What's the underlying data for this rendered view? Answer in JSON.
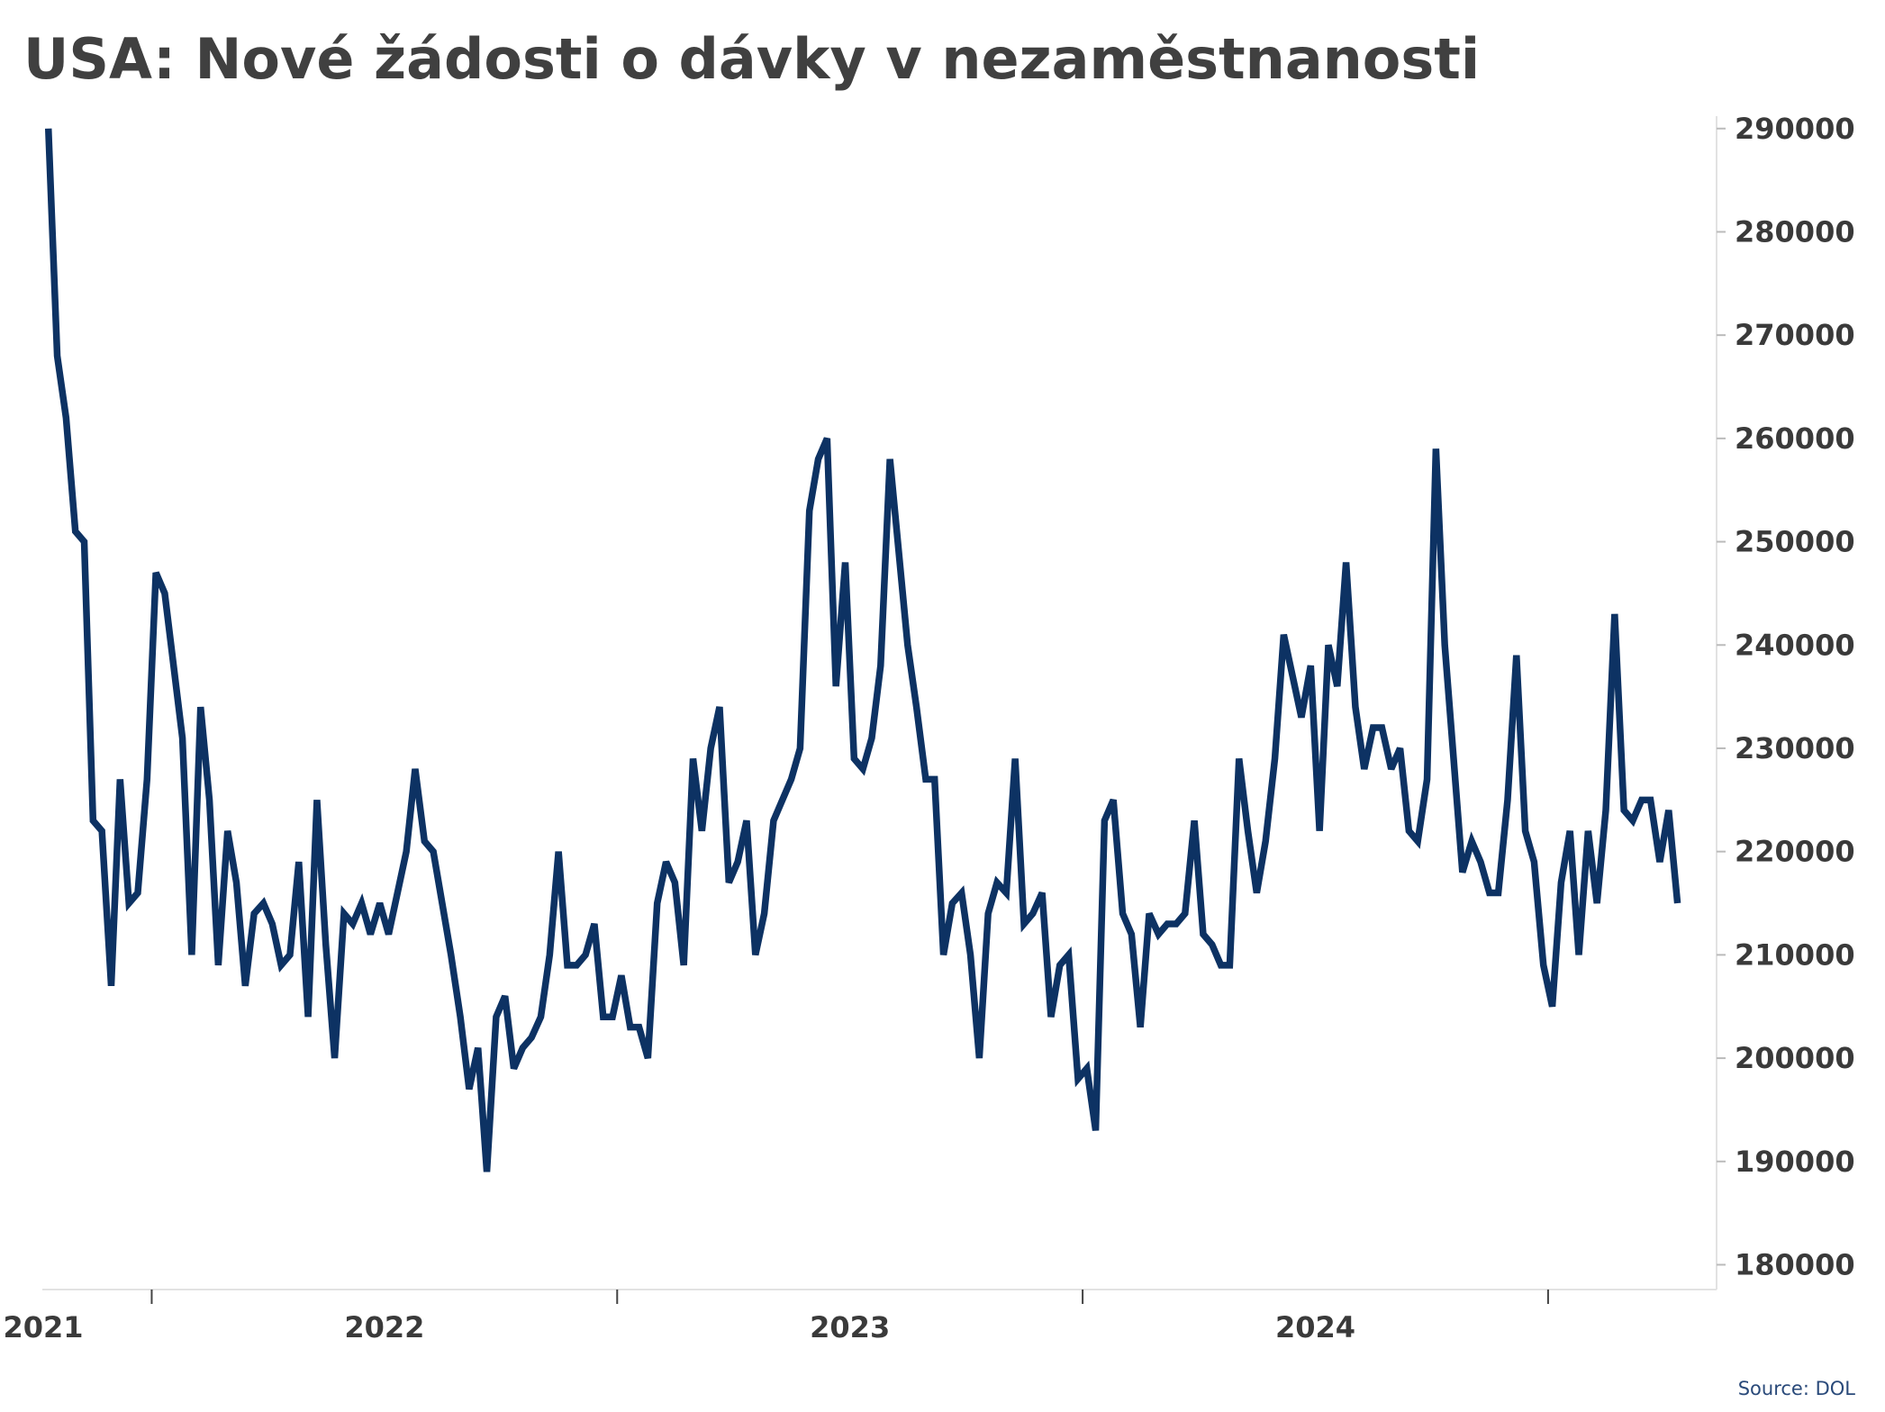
{
  "chart_data": {
    "type": "line",
    "title": "USA: Nové žádosti o dávky v nezaměstnanosti",
    "source": "Source: DOL",
    "color": "#0d3263",
    "x": [
      2021.778,
      2021.797,
      2021.816,
      2021.836,
      2021.855,
      2021.874,
      2021.893,
      2021.913,
      2021.932,
      2021.951,
      2021.97,
      2021.99,
      2022.009,
      2022.028,
      2022.047,
      2022.066,
      2022.086,
      2022.105,
      2022.124,
      2022.143,
      2022.163,
      2022.182,
      2022.201,
      2022.22,
      2022.24,
      2022.259,
      2022.278,
      2022.297,
      2022.316,
      2022.336,
      2022.355,
      2022.374,
      2022.393,
      2022.413,
      2022.432,
      2022.451,
      2022.47,
      2022.49,
      2022.509,
      2022.528,
      2022.547,
      2022.566,
      2022.586,
      2022.605,
      2022.624,
      2022.643,
      2022.663,
      2022.682,
      2022.701,
      2022.72,
      2022.74,
      2022.759,
      2022.778,
      2022.797,
      2022.816,
      2022.836,
      2022.855,
      2022.874,
      2022.893,
      2022.913,
      2022.932,
      2022.951,
      2022.97,
      2022.99,
      2023.009,
      2023.028,
      2023.047,
      2023.066,
      2023.086,
      2023.105,
      2023.124,
      2023.143,
      2023.163,
      2023.182,
      2023.201,
      2023.22,
      2023.24,
      2023.259,
      2023.278,
      2023.297,
      2023.316,
      2023.336,
      2023.355,
      2023.374,
      2023.393,
      2023.413,
      2023.432,
      2023.451,
      2023.47,
      2023.49,
      2023.509,
      2023.528,
      2023.547,
      2023.566,
      2023.586,
      2023.605,
      2023.624,
      2023.643,
      2023.663,
      2023.682,
      2023.701,
      2023.72,
      2023.74,
      2023.759,
      2023.778,
      2023.797,
      2023.816,
      2023.836,
      2023.855,
      2023.874,
      2023.893,
      2023.913,
      2023.932,
      2023.951,
      2023.97,
      2023.99,
      2024.009,
      2024.028,
      2024.047,
      2024.066,
      2024.086,
      2024.105,
      2024.124,
      2024.143,
      2024.163,
      2024.182,
      2024.201,
      2024.22,
      2024.24,
      2024.259,
      2024.278,
      2024.297,
      2024.316,
      2024.336,
      2024.355,
      2024.374,
      2024.393,
      2024.413,
      2024.432,
      2024.451,
      2024.47,
      2024.49,
      2024.509,
      2024.528,
      2024.547,
      2024.566,
      2024.586,
      2024.605,
      2024.624,
      2024.643,
      2024.663,
      2024.682,
      2024.701,
      2024.72,
      2024.74,
      2024.759,
      2024.778,
      2024.797,
      2024.816,
      2024.836,
      2024.855,
      2024.874,
      2024.893,
      2024.913,
      2024.932,
      2024.951,
      2024.97,
      2024.99,
      2025.009,
      2025.028,
      2025.047,
      2025.066,
      2025.086,
      2025.105,
      2025.124,
      2025.143,
      2025.163,
      2025.182,
      2025.201,
      2025.22,
      2025.24,
      2025.259,
      2025.278
    ],
    "values": [
      290000,
      268000,
      262000,
      251000,
      250000,
      223000,
      222000,
      207000,
      227000,
      215000,
      216000,
      227000,
      247000,
      245000,
      238000,
      231000,
      210000,
      234000,
      225000,
      209000,
      222000,
      217000,
      207000,
      214000,
      215000,
      213000,
      209000,
      210000,
      219000,
      204000,
      225000,
      211000,
      200000,
      214000,
      213000,
      215000,
      212000,
      215000,
      212000,
      216000,
      220000,
      228000,
      221000,
      220000,
      215000,
      210000,
      204000,
      197000,
      201000,
      189000,
      204000,
      206000,
      199000,
      201000,
      202000,
      204000,
      210000,
      220000,
      209000,
      209000,
      210000,
      213000,
      204000,
      204000,
      208000,
      203000,
      203000,
      200000,
      215000,
      219000,
      217000,
      209000,
      229000,
      222000,
      230000,
      234000,
      217000,
      219000,
      223000,
      210000,
      214000,
      223000,
      225000,
      227000,
      230000,
      253000,
      258000,
      260000,
      236000,
      248000,
      229000,
      228000,
      231000,
      238000,
      258000,
      249000,
      240000,
      234000,
      227000,
      227000,
      210000,
      215000,
      216000,
      210000,
      200000,
      214000,
      217000,
      216000,
      229000,
      213000,
      214000,
      216000,
      204000,
      209000,
      210000,
      198000,
      199000,
      193000,
      223000,
      225000,
      214000,
      212000,
      203000,
      214000,
      212000,
      213000,
      213000,
      214000,
      223000,
      212000,
      211000,
      209000,
      209000,
      229000,
      222000,
      216000,
      221000,
      229000,
      241000,
      237000,
      233000,
      238000,
      222000,
      240000,
      236000,
      248000,
      234000,
      228000,
      232000,
      232000,
      228000,
      230000,
      222000,
      221000,
      227000,
      259000,
      240000,
      229000,
      218000,
      221000,
      219000,
      216000,
      216000,
      225000,
      239000,
      222000,
      219000,
      209000,
      205000,
      217000,
      222000,
      210000,
      222000,
      215000,
      224000,
      243000,
      224000,
      223000,
      225000,
      225000,
      219000,
      224000,
      215000
    ],
    "xlim": [
      2021.765,
      2025.362
    ],
    "xticks": [
      {
        "value": 2021.5,
        "label": "2021"
      },
      {
        "value": 2022.5,
        "label": "2022"
      },
      {
        "value": 2023.5,
        "label": "2023"
      },
      {
        "value": 2024.5,
        "label": "2024"
      }
    ],
    "xtick_marks": [
      2022,
      2023,
      2024,
      2025
    ],
    "ylim": [
      177600,
      291200
    ],
    "yticks": [
      180000,
      190000,
      200000,
      210000,
      220000,
      230000,
      240000,
      250000,
      260000,
      270000,
      280000,
      290000
    ],
    "y_axis_side": "right",
    "grid": false
  }
}
